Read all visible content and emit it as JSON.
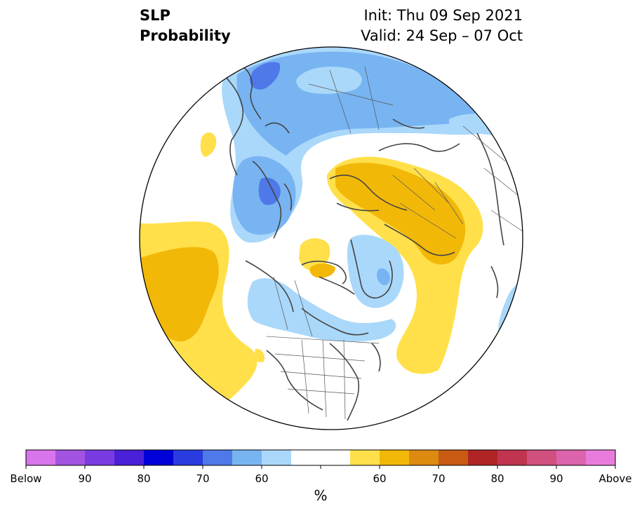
{
  "header": {
    "title_line1": "SLP",
    "title_line2": "Probability",
    "init": "Init: Thu 09 Sep 2021",
    "valid": "Valid: 24 Sep – 07 Oct"
  },
  "map": {
    "projection": "north-polar-stereographic",
    "colors": {
      "below_light": "#aad8fa",
      "below_60": "#78b4f2",
      "below_70": "#4f78e8",
      "above_light": "#ffe04a",
      "above_60": "#f2b808",
      "coast": "#444444",
      "border": "#000000"
    }
  },
  "colorbar": {
    "colors": [
      "#d874ec",
      "#a254e0",
      "#7a3ce2",
      "#4a20d8",
      "#0000d8",
      "#2a3ce0",
      "#4f78e8",
      "#78b4f2",
      "#aad8fa",
      "#ffffff",
      "#ffffff",
      "#ffe04a",
      "#f2b808",
      "#dd8a10",
      "#c85a14",
      "#b02424",
      "#c03450",
      "#d05080",
      "#dc64ac",
      "#e87cdc"
    ],
    "tick_labels": [
      "Below",
      "90",
      "80",
      "70",
      "60",
      "60",
      "70",
      "80",
      "90",
      "Above"
    ],
    "unit": "%"
  }
}
